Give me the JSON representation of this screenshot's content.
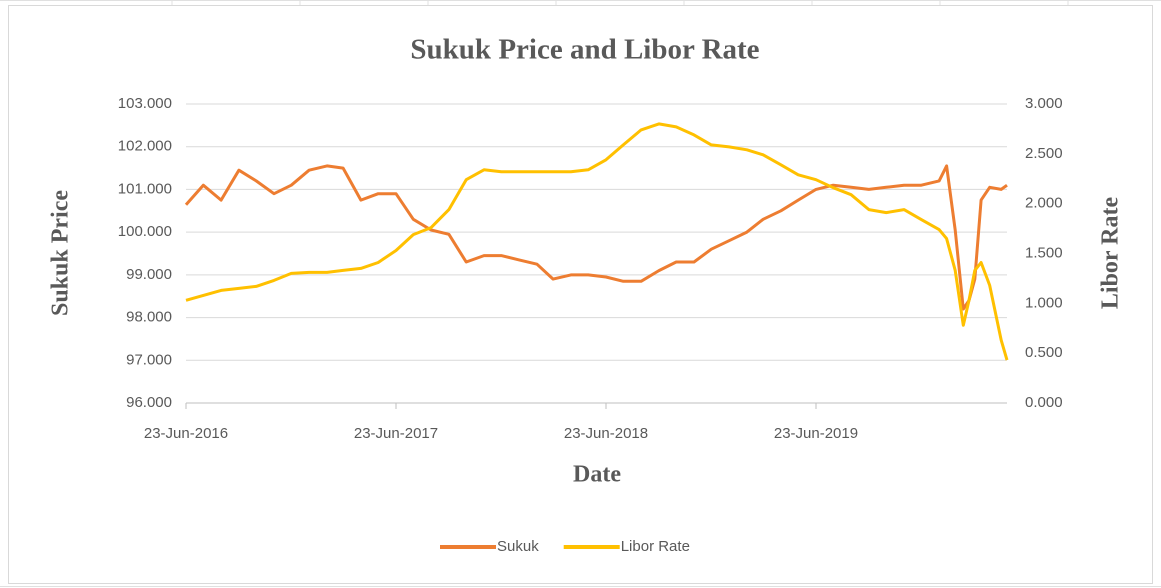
{
  "chart_data": {
    "type": "line",
    "title": "Sukuk Price and Libor Rate",
    "xlabel": "Date",
    "ylabel": "Sukuk Price",
    "y2label": "Libor Rate",
    "x": [
      "2016-06-23",
      "2016-07-23",
      "2016-08-23",
      "2016-09-23",
      "2016-10-23",
      "2016-11-23",
      "2016-12-23",
      "2017-01-23",
      "2017-02-23",
      "2017-03-23",
      "2017-04-23",
      "2017-05-23",
      "2017-06-23",
      "2017-07-23",
      "2017-08-23",
      "2017-09-23",
      "2017-10-23",
      "2017-11-23",
      "2017-12-23",
      "2018-01-23",
      "2018-02-23",
      "2018-03-23",
      "2018-04-23",
      "2018-05-23",
      "2018-06-23",
      "2018-07-23",
      "2018-08-23",
      "2018-09-23",
      "2018-10-23",
      "2018-11-23",
      "2018-12-23",
      "2019-01-23",
      "2019-02-23",
      "2019-03-23",
      "2019-04-23",
      "2019-05-23",
      "2019-06-23",
      "2019-07-23",
      "2019-08-23",
      "2019-09-23",
      "2019-10-23",
      "2019-11-23",
      "2019-12-23",
      "2020-01-23",
      "2020-02-05",
      "2020-02-20",
      "2020-03-05",
      "2020-03-15",
      "2020-03-25",
      "2020-04-05",
      "2020-04-20",
      "2020-05-10",
      "2020-05-20"
    ],
    "series": [
      {
        "name": "Sukuk",
        "color": "#ed7d31",
        "values": [
          100.64,
          101.1,
          100.75,
          101.45,
          101.2,
          100.9,
          101.1,
          101.45,
          101.55,
          101.5,
          100.75,
          100.9,
          100.9,
          100.3,
          100.05,
          99.95,
          99.3,
          99.45,
          99.45,
          99.35,
          99.25,
          98.9,
          99.0,
          99.0,
          98.95,
          98.85,
          98.85,
          99.1,
          99.3,
          99.3,
          99.6,
          99.8,
          100.0,
          100.3,
          100.5,
          100.75,
          101.0,
          101.1,
          101.05,
          101.0,
          101.05,
          101.1,
          101.1,
          101.2,
          101.55,
          100.05,
          98.2,
          98.4,
          98.9,
          100.75,
          101.05,
          101.0,
          101.1
        ]
      },
      {
        "name": "Libor Rate",
        "color": "#ffc000",
        "axis": "y2",
        "values": [
          1.03,
          1.08,
          1.13,
          1.15,
          1.17,
          1.23,
          1.3,
          1.31,
          1.31,
          1.33,
          1.35,
          1.41,
          1.53,
          1.69,
          1.76,
          1.94,
          2.24,
          2.34,
          2.32,
          2.32,
          2.32,
          2.32,
          2.32,
          2.34,
          2.44,
          2.59,
          2.74,
          2.8,
          2.77,
          2.69,
          2.59,
          2.57,
          2.54,
          2.49,
          2.39,
          2.29,
          2.24,
          2.16,
          2.09,
          1.94,
          1.91,
          1.94,
          1.84,
          1.74,
          1.65,
          1.33,
          0.78,
          1.03,
          1.33,
          1.41,
          1.18,
          0.63,
          0.43
        ]
      }
    ],
    "xlim": [
      "2016-06-23",
      "2020-05-20"
    ],
    "xticks": [
      {
        "value": "2016-06-23",
        "label": "23-Jun-2016"
      },
      {
        "value": "2017-06-23",
        "label": "23-Jun-2017"
      },
      {
        "value": "2018-06-23",
        "label": "23-Jun-2018"
      },
      {
        "value": "2019-06-23",
        "label": "23-Jun-2019"
      }
    ],
    "ylim": [
      96,
      103
    ],
    "yticks": [
      {
        "value": 96,
        "label": "96.000"
      },
      {
        "value": 97,
        "label": "97.000"
      },
      {
        "value": 98,
        "label": "98.000"
      },
      {
        "value": 99,
        "label": "99.000"
      },
      {
        "value": 100,
        "label": "100.000"
      },
      {
        "value": 101,
        "label": "101.000"
      },
      {
        "value": 102,
        "label": "102.000"
      },
      {
        "value": 103,
        "label": "103.000"
      }
    ],
    "y2lim": [
      0,
      3
    ],
    "y2ticks": [
      {
        "value": 0,
        "label": "0.000"
      },
      {
        "value": 0.5,
        "label": "0.500"
      },
      {
        "value": 1,
        "label": "1.000"
      },
      {
        "value": 1.5,
        "label": "1.500"
      },
      {
        "value": 2,
        "label": "2.000"
      },
      {
        "value": 2.5,
        "label": "2.500"
      },
      {
        "value": 3,
        "label": "3.000"
      }
    ],
    "grid": true,
    "legend": "bottom"
  }
}
